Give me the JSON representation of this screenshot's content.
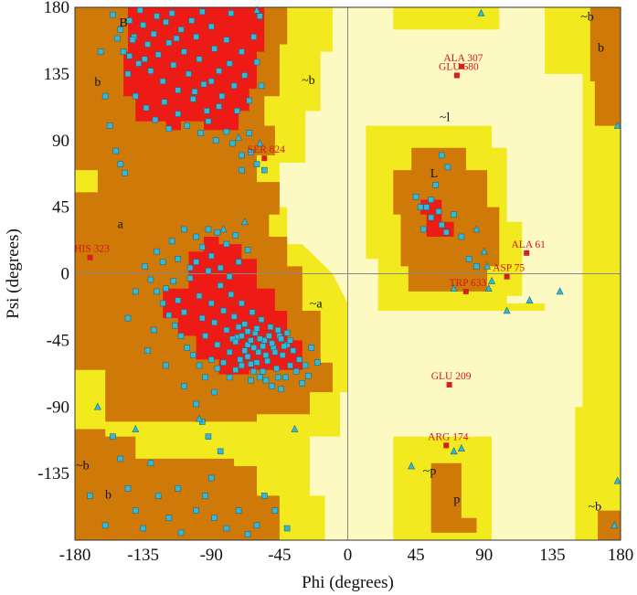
{
  "chart_data": {
    "type": "scatter",
    "title": "",
    "xlabel": "Phi (degrees)",
    "ylabel": "Psi (degrees)",
    "xlim": [
      -180,
      180
    ],
    "ylim": [
      -180,
      180
    ],
    "xticks": [
      -180,
      -135,
      -90,
      -45,
      0,
      45,
      90,
      135,
      180
    ],
    "yticks": [
      180,
      135,
      90,
      45,
      0,
      -45,
      -90,
      -135
    ],
    "grid": false,
    "colors": {
      "core": "#ee1a16",
      "allowed": "#cf7a08",
      "generous": "#f2ea1e",
      "disallowed": "#fdf9c2",
      "residue": "#35b8d8",
      "outlier": "#d42020"
    },
    "region_labels": [
      {
        "text": "B",
        "phi": -148,
        "psi": 167
      },
      {
        "text": "b",
        "phi": -165,
        "psi": 127
      },
      {
        "text": "~b",
        "phi": -26,
        "psi": 128
      },
      {
        "text": "a",
        "phi": -150,
        "psi": 31
      },
      {
        "text": "~a",
        "phi": -21,
        "psi": -23
      },
      {
        "text": "L",
        "phi": 57,
        "psi": 65
      },
      {
        "text": "~l",
        "phi": 64,
        "psi": 103
      },
      {
        "text": "~b",
        "phi": -175,
        "psi": -132
      },
      {
        "text": "b",
        "phi": -158,
        "psi": -152
      },
      {
        "text": "~p",
        "phi": 54,
        "psi": -136
      },
      {
        "text": "p",
        "phi": 72,
        "psi": -155
      },
      {
        "text": "~b",
        "phi": 158,
        "psi": 171
      },
      {
        "text": "b",
        "phi": 167,
        "psi": 150
      },
      {
        "text": "~b",
        "phi": 163,
        "psi": -160
      }
    ],
    "outliers": [
      {
        "label": "ALA 307",
        "phi": 75,
        "psi": 140
      },
      {
        "label": "GLU 680",
        "phi": 72,
        "psi": 134
      },
      {
        "label": "SER 824",
        "phi": -55,
        "psi": 78
      },
      {
        "label": "HIS 323",
        "phi": -170,
        "psi": 11
      },
      {
        "label": "ALA 61",
        "phi": 118,
        "psi": 14
      },
      {
        "label": "ASP 75",
        "phi": 105,
        "psi": -2
      },
      {
        "label": "TRP 633",
        "phi": 78,
        "psi": -12
      },
      {
        "label": "GLU 209",
        "phi": 67,
        "psi": -75
      },
      {
        "label": "ARG 174",
        "phi": 65,
        "psi": -116
      }
    ],
    "series": [
      {
        "marker": "square",
        "points": [
          [
            -150,
            165
          ],
          [
            -148,
            150
          ],
          [
            -144,
            171
          ],
          [
            -141,
            160
          ],
          [
            -138,
            142
          ],
          [
            -135,
            168
          ],
          [
            -132,
            155
          ],
          [
            -130,
            137
          ],
          [
            -128,
            162
          ],
          [
            -125,
            148
          ],
          [
            -122,
            130
          ],
          [
            -120,
            170
          ],
          [
            -118,
            156
          ],
          [
            -115,
            141
          ],
          [
            -112,
            124
          ],
          [
            -110,
            165
          ],
          [
            -108,
            150
          ],
          [
            -105,
            135
          ],
          [
            -102,
            118
          ],
          [
            -100,
            160
          ],
          [
            -98,
            145
          ],
          [
            -95,
            128
          ],
          [
            -93,
            110
          ],
          [
            -90,
            167
          ],
          [
            -88,
            152
          ],
          [
            -85,
            137
          ],
          [
            -83,
            120
          ],
          [
            -80,
            158
          ],
          [
            -78,
            142
          ],
          [
            -75,
            127
          ],
          [
            -73,
            110
          ],
          [
            -70,
            150
          ],
          [
            -68,
            134
          ],
          [
            -65,
            117
          ],
          [
            -62,
            160
          ],
          [
            -60,
            143
          ],
          [
            -57,
            127
          ],
          [
            -145,
            135
          ],
          [
            -140,
            120
          ],
          [
            -133,
            112
          ],
          [
            -127,
            104
          ],
          [
            -118,
            98
          ],
          [
            -112,
            108
          ],
          [
            -106,
            100
          ],
          [
            -97,
            95
          ],
          [
            -92,
            103
          ],
          [
            -87,
            90
          ],
          [
            -80,
            96
          ],
          [
            -76,
            88
          ],
          [
            -70,
            80
          ],
          [
            -64,
            82
          ],
          [
            -60,
            74
          ],
          [
            -155,
            175
          ],
          [
            -137,
            178
          ],
          [
            -116,
            176
          ],
          [
            -96,
            177
          ],
          [
            -77,
            176
          ],
          [
            -58,
            174
          ],
          [
            -163,
            150
          ],
          [
            -160,
            120
          ],
          [
            -157,
            100
          ],
          [
            -153,
            83
          ],
          [
            -150,
            74
          ],
          [
            -147,
            68
          ],
          [
            -142,
            158
          ],
          [
            -126,
            174
          ],
          [
            -113,
            159
          ],
          [
            -103,
            171
          ],
          [
            -90,
            130
          ],
          [
            -85,
            113
          ],
          [
            -101,
            123
          ],
          [
            -121,
            116
          ],
          [
            -134,
            145
          ],
          [
            -144,
            147
          ],
          [
            -152,
            159
          ],
          [
            -65,
            95
          ],
          [
            -70,
            70
          ],
          [
            -55,
            70
          ],
          [
            -120,
            -10
          ],
          [
            -115,
            -5
          ],
          [
            -112,
            -18
          ],
          [
            -108,
            -26
          ],
          [
            -104,
            -3
          ],
          [
            -100,
            8
          ],
          [
            -98,
            -15
          ],
          [
            -96,
            -30
          ],
          [
            -94,
            -42
          ],
          [
            -92,
            2
          ],
          [
            -90,
            -20
          ],
          [
            -88,
            -33
          ],
          [
            -86,
            -48
          ],
          [
            -84,
            -8
          ],
          [
            -82,
            -25
          ],
          [
            -80,
            -38
          ],
          [
            -78,
            -53
          ],
          [
            -77,
            -14
          ],
          [
            -75,
            -29
          ],
          [
            -73,
            -43
          ],
          [
            -71,
            -58
          ],
          [
            -70,
            -20
          ],
          [
            -68,
            -34
          ],
          [
            -66,
            -48
          ],
          [
            -64,
            -61
          ],
          [
            -63,
            -26
          ],
          [
            -61,
            -40
          ],
          [
            -59,
            -53
          ],
          [
            -58,
            -70
          ],
          [
            -57,
            -31
          ],
          [
            -55,
            -45
          ],
          [
            -53,
            -59
          ],
          [
            -51,
            -36
          ],
          [
            -49,
            -50
          ],
          [
            -47,
            -64
          ],
          [
            -45,
            -42
          ],
          [
            -43,
            -55
          ],
          [
            -41,
            -70
          ],
          [
            -40,
            -48
          ],
          [
            -38,
            -62
          ],
          [
            -36,
            -52
          ],
          [
            -34,
            -66
          ],
          [
            -32,
            -58
          ],
          [
            -30,
            -74
          ],
          [
            -28,
            -62
          ],
          [
            -26,
            -69
          ],
          [
            -76,
            -44
          ],
          [
            -74,
            -46
          ],
          [
            -72,
            -36
          ],
          [
            -70,
            -42
          ],
          [
            -68,
            -52
          ],
          [
            -66,
            -39
          ],
          [
            -64,
            -45
          ],
          [
            -62,
            -50
          ],
          [
            -60,
            -37
          ],
          [
            -58,
            -44
          ],
          [
            -56,
            -49
          ],
          [
            -54,
            -55
          ],
          [
            -52,
            -42
          ],
          [
            -50,
            -47
          ],
          [
            -48,
            -53
          ],
          [
            -46,
            -38
          ],
          [
            -44,
            -44
          ],
          [
            -42,
            -49
          ],
          [
            -40,
            -40
          ],
          [
            -38,
            -45
          ],
          [
            -60,
            -60
          ],
          [
            -62,
            -66
          ],
          [
            -64,
            -72
          ],
          [
            -56,
            -66
          ],
          [
            -54,
            -72
          ],
          [
            -50,
            -76
          ],
          [
            -46,
            -70
          ],
          [
            -44,
            -78
          ],
          [
            -66,
            -56
          ],
          [
            -70,
            -62
          ],
          [
            -74,
            -65
          ],
          [
            -78,
            -70
          ],
          [
            -82,
            -60
          ],
          [
            -86,
            -64
          ],
          [
            -90,
            -58
          ],
          [
            -94,
            -70
          ],
          [
            -98,
            -62
          ],
          [
            -102,
            -55
          ],
          [
            -106,
            -50
          ],
          [
            -110,
            -42
          ],
          [
            -114,
            -35
          ],
          [
            -118,
            -28
          ],
          [
            -122,
            -20
          ],
          [
            -126,
            -12
          ],
          [
            -130,
            -4
          ],
          [
            -134,
            5
          ],
          [
            -126,
            15
          ],
          [
            -116,
            22
          ],
          [
            -108,
            30
          ],
          [
            -100,
            25
          ],
          [
            -96,
            18
          ],
          [
            -90,
            12
          ],
          [
            -84,
            4
          ],
          [
            -78,
            -2
          ],
          [
            -72,
            8
          ],
          [
            -66,
            16
          ],
          [
            -140,
            -12
          ],
          [
            -145,
            -30
          ],
          [
            -128,
            -38
          ],
          [
            -132,
            -52
          ],
          [
            -120,
            -62
          ],
          [
            -108,
            -76
          ],
          [
            -100,
            -88
          ],
          [
            -96,
            -100
          ],
          [
            -92,
            -110
          ],
          [
            -88,
            -80
          ],
          [
            -24,
            -50
          ],
          [
            -20,
            -60
          ],
          [
            -80,
            20
          ],
          [
            -74,
            26
          ],
          [
            -86,
            28
          ],
          [
            -92,
            30
          ],
          [
            -104,
            4
          ],
          [
            -112,
            10
          ],
          [
            -122,
            8
          ],
          [
            -155,
            -110
          ],
          [
            -150,
            -125
          ],
          [
            -145,
            -145
          ],
          [
            -140,
            -160
          ],
          [
            -135,
            -172
          ],
          [
            -125,
            -150
          ],
          [
            -118,
            -165
          ],
          [
            -110,
            -175
          ],
          [
            -100,
            -160
          ],
          [
            -94,
            -150
          ],
          [
            -88,
            -165
          ],
          [
            -80,
            -172
          ],
          [
            -72,
            -160
          ],
          [
            -66,
            -176
          ],
          [
            -60,
            -170
          ],
          [
            -90,
            -138
          ],
          [
            -84,
            -120
          ],
          [
            -112,
            -145
          ],
          [
            -130,
            -128
          ],
          [
            -160,
            -170
          ],
          [
            -170,
            -150
          ],
          [
            -55,
            -150
          ],
          [
            -48,
            -160
          ],
          [
            -40,
            -172
          ],
          [
            60,
            42
          ],
          [
            55,
            50
          ],
          [
            62,
            33
          ],
          [
            65,
            28
          ],
          [
            58,
            60
          ],
          [
            52,
            45
          ],
          [
            70,
            40
          ],
          [
            66,
            72
          ],
          [
            62,
            80
          ],
          [
            75,
            25
          ],
          [
            80,
            10
          ],
          [
            85,
            5
          ],
          [
            50,
            30
          ],
          [
            48,
            45
          ],
          [
            45,
            52
          ],
          [
            55,
            38
          ]
        ]
      },
      {
        "marker": "triangle",
        "points": [
          [
            88,
            176
          ],
          [
            -60,
            178
          ],
          [
            -165,
            -90
          ],
          [
            -98,
            -98
          ],
          [
            70,
            -120
          ],
          [
            75,
            -118
          ],
          [
            90,
            15
          ],
          [
            92,
            5
          ],
          [
            95,
            -5
          ],
          [
            85,
            30
          ],
          [
            70,
            -10
          ],
          [
            93,
            -10
          ],
          [
            120,
            -18
          ],
          [
            140,
            -12
          ],
          [
            178,
            -140
          ],
          [
            176,
            -170
          ],
          [
            178,
            100
          ],
          [
            -35,
            -105
          ],
          [
            -58,
            88
          ],
          [
            -72,
            92
          ],
          [
            -140,
            -105
          ],
          [
            -82,
            30
          ],
          [
            -68,
            35
          ],
          [
            42,
            -130
          ],
          [
            105,
            -25
          ]
        ]
      }
    ]
  }
}
